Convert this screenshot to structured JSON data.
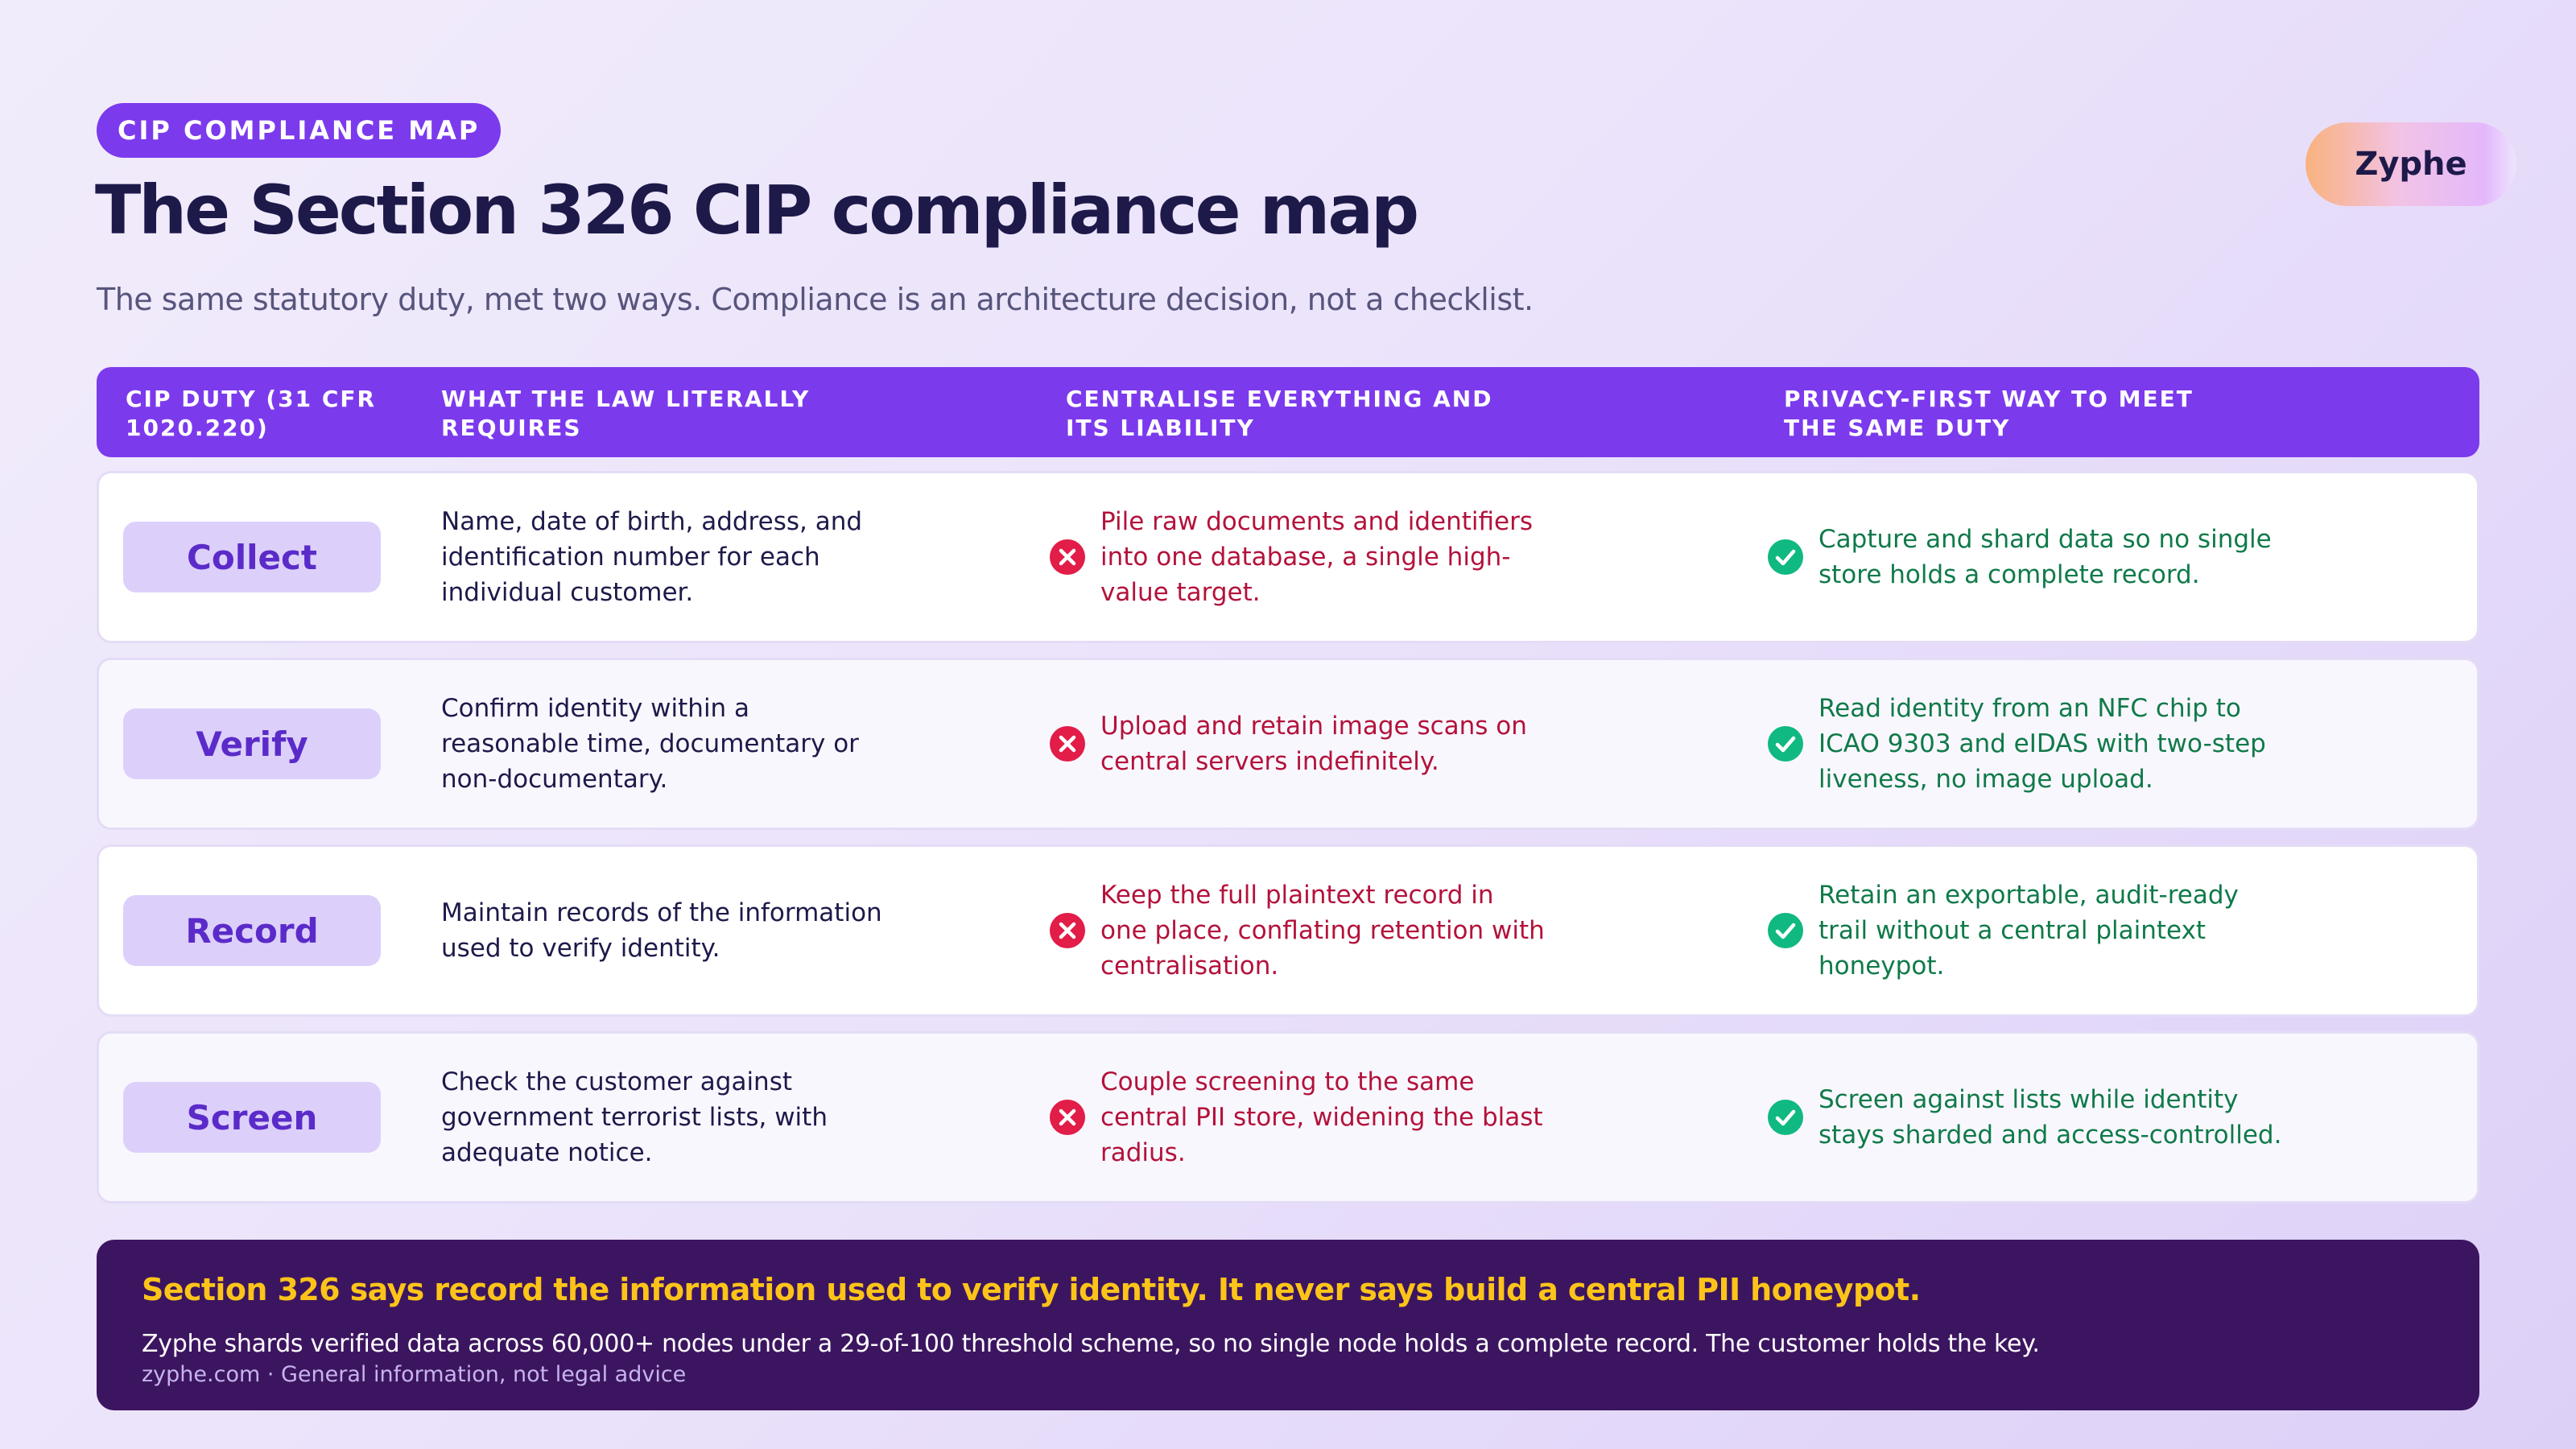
{
  "header": {
    "eyebrow": "CIP COMPLIANCE MAP",
    "title": "The Section 326 CIP compliance map",
    "subtitle": "The same statutory duty, met two ways. Compliance is an architecture decision, not a checklist.",
    "brand": "Zyphe"
  },
  "table": {
    "columns": [
      "CIP DUTY (31 CFR 1020.220)",
      "WHAT THE LAW LITERALLY REQUIRES",
      "CENTRALISE EVERYTHING AND ITS LIABILITY",
      "PRIVACY-FIRST WAY TO MEET THE SAME DUTY"
    ],
    "rows": [
      {
        "duty": "Collect",
        "law": "Name, date of birth, address, and identification number for each individual customer.",
        "centralise": "Pile raw documents and identifiers into one database, a single high-value target.",
        "privacy": "Capture and shard data so no single store holds a complete record."
      },
      {
        "duty": "Verify",
        "law": "Confirm identity within a reasonable time, documentary or non-documentary.",
        "centralise": "Upload and retain image scans on central servers indefinitely.",
        "privacy": "Read identity from an NFC chip to ICAO 9303 and eIDAS with two-step liveness, no image upload."
      },
      {
        "duty": "Record",
        "law": "Maintain records of the information used to verify identity.",
        "centralise": "Keep the full plaintext record in one place, conflating retention with centralisation.",
        "privacy": "Retain an exportable, audit-ready trail without a central plaintext honeypot."
      },
      {
        "duty": "Screen",
        "law": "Check the customer against government terrorist lists, with adequate notice.",
        "centralise": "Couple screening to the same central PII store, widening the blast radius.",
        "privacy": "Screen against lists while identity stays sharded and access-controlled."
      }
    ]
  },
  "callout": {
    "headline": "Section 326 says record the information used to verify identity. It never says build a central PII honeypot.",
    "body": "Zyphe shards verified data across 60,000+ nodes under a 29-of-100 threshold scheme, so no single node holds a complete record. The customer holds the key.",
    "footer": "zyphe.com · General information, not legal advice"
  },
  "icons": {
    "negative": "x-circle-icon",
    "positive": "check-circle-icon"
  },
  "colors": {
    "accent": "#7c3aed",
    "negative": "#e11d48",
    "positive": "#10b981",
    "callout_bg": "#3c1560",
    "callout_headline": "#fcc419"
  }
}
